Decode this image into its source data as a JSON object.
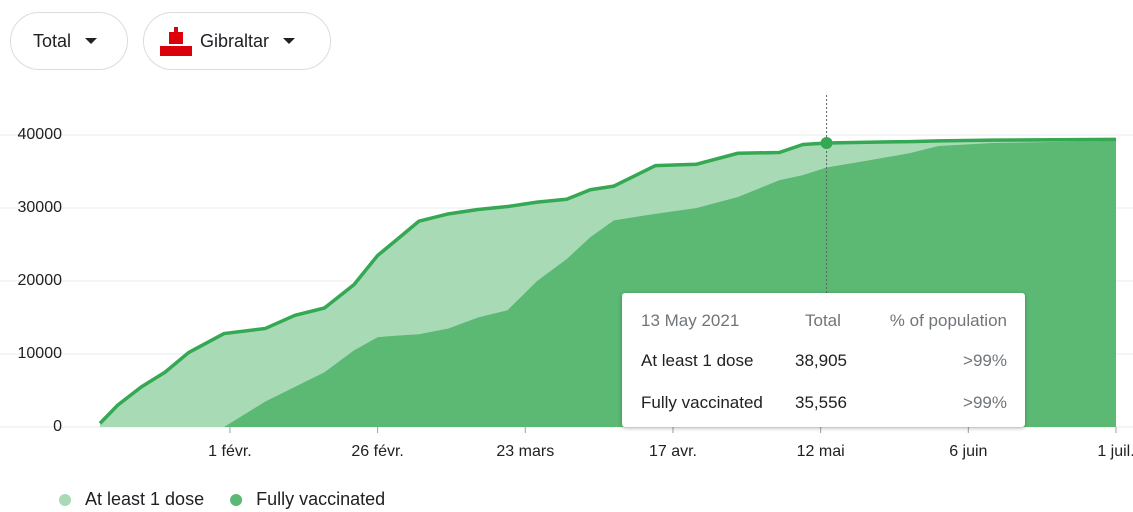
{
  "controls": {
    "measure": "Total",
    "region": "Gibraltar"
  },
  "chart_data": {
    "type": "area",
    "x": [
      "2021-01-10",
      "2021-01-13",
      "2021-01-17",
      "2021-01-21",
      "2021-01-25",
      "2021-01-28",
      "2021-01-31",
      "2021-02-07",
      "2021-02-12",
      "2021-02-17",
      "2021-02-22",
      "2021-02-26",
      "2021-03-01",
      "2021-03-05",
      "2021-03-10",
      "2021-03-15",
      "2021-03-20",
      "2021-03-25",
      "2021-03-30",
      "2021-04-03",
      "2021-04-07",
      "2021-04-14",
      "2021-04-21",
      "2021-04-28",
      "2021-05-05",
      "2021-05-09",
      "2021-05-13",
      "2021-05-20",
      "2021-05-27",
      "2021-06-01",
      "2021-06-10",
      "2021-07-01"
    ],
    "series": [
      {
        "name": "At least 1 dose",
        "color": "#a8dab5",
        "line_color": "#34a853",
        "values": [
          500,
          3000,
          5500,
          7500,
          10200,
          11500,
          12800,
          13500,
          15300,
          16300,
          19500,
          23500,
          25500,
          28200,
          29200,
          29800,
          30200,
          30800,
          31200,
          32500,
          33000,
          35800,
          36000,
          37500,
          37600,
          38700,
          38905,
          39000,
          39100,
          39200,
          39300,
          39400
        ]
      },
      {
        "name": "Fully vaccinated",
        "color": "#5bb974",
        "values": [
          0,
          0,
          0,
          0,
          0,
          0,
          0,
          3500,
          5500,
          7500,
          10500,
          12300,
          12500,
          12700,
          13500,
          15000,
          16000,
          20000,
          23000,
          26000,
          28300,
          29200,
          30000,
          31500,
          33800,
          34500,
          35556,
          36500,
          37500,
          38500,
          38900,
          39200
        ]
      }
    ],
    "xlim": [
      "2021-01-10",
      "2021-07-01"
    ],
    "xticks": [
      {
        "value": "2021-02-01",
        "label": "1 févr."
      },
      {
        "value": "2021-02-26",
        "label": "26 févr."
      },
      {
        "value": "2021-03-23",
        "label": "23 mars"
      },
      {
        "value": "2021-04-17",
        "label": "17 avr."
      },
      {
        "value": "2021-05-12",
        "label": "12 mai"
      },
      {
        "value": "2021-06-06",
        "label": "6 juin"
      },
      {
        "value": "2021-07-01",
        "label": "1 juil."
      }
    ],
    "ylim": [
      0,
      40000
    ],
    "yticks": [
      0,
      10000,
      20000,
      30000,
      40000
    ],
    "grid": true,
    "legend": "bottom-left"
  },
  "tooltip": {
    "date": "13 May 2021",
    "col_total": "Total",
    "col_pct": "% of population",
    "rows": [
      {
        "label": "At least 1 dose",
        "total": "38,905",
        "pct": ">99%"
      },
      {
        "label": "Fully vaccinated",
        "total": "35,556",
        "pct": ">99%"
      }
    ]
  }
}
